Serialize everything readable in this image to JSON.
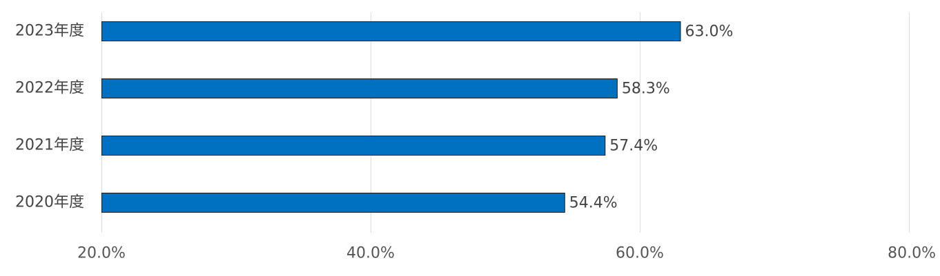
{
  "chart_data": {
    "type": "bar",
    "orientation": "horizontal",
    "categories": [
      "2023年度",
      "2022年度",
      "2021年度",
      "2020年度"
    ],
    "values": [
      63.0,
      58.3,
      57.4,
      54.4
    ],
    "value_labels": [
      "63.0%",
      "58.3%",
      "57.4%",
      "54.4%"
    ],
    "xlim": [
      20,
      80
    ],
    "xticks": [
      20,
      40,
      60,
      80
    ],
    "xtick_labels": [
      "20.0%",
      "40.0%",
      "60.0%",
      "80.0%"
    ],
    "grid": "vertical",
    "bar_color": "#0070C0"
  }
}
